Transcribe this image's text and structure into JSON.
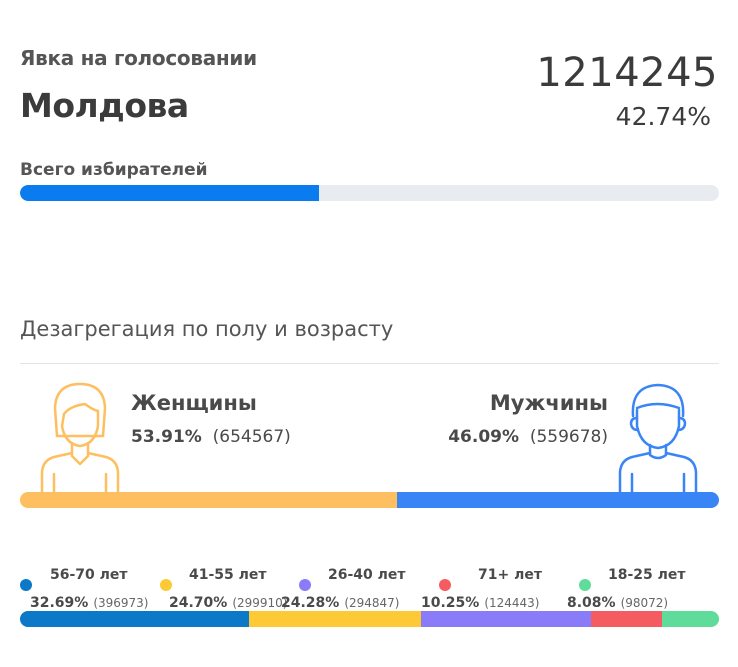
{
  "header": {
    "subtitle": "Явка на голосовании",
    "title": "Молдова",
    "total": "1214245",
    "turnout_pct": "42.74%",
    "turnout_fraction": 0.4274
  },
  "voters": {
    "label": "Всего избирателей"
  },
  "breakdown": {
    "title": "Дезагрегация по полу и возрасту",
    "women": {
      "label": "Женщины",
      "pct": "53.91%",
      "count": "(654567)",
      "fraction": 0.5391,
      "color": "#fdbf5f"
    },
    "men": {
      "label": "Мужчины",
      "pct": "46.09%",
      "count": "(559678)",
      "fraction": 0.4609,
      "color": "#3a85f5"
    }
  },
  "ages": [
    {
      "label": "56-70 лет",
      "pct": "32.69%",
      "count": "(396973)",
      "fraction": 0.3269,
      "color": "#0b78c8"
    },
    {
      "label": "41-55 лет",
      "pct": "24.70%",
      "count": "(299910)",
      "fraction": 0.247,
      "color": "#fdca35"
    },
    {
      "label": "26-40 лет",
      "pct": "24.28%",
      "count": "(294847)",
      "fraction": 0.2428,
      "color": "#8a7cf9"
    },
    {
      "label": "71+ лет",
      "pct": "10.25%",
      "count": "(124443)",
      "fraction": 0.1025,
      "color": "#f55c61"
    },
    {
      "label": "18-25 лет",
      "pct": "8.08%",
      "count": "(98072)",
      "fraction": 0.0808,
      "color": "#5fdc9a"
    }
  ],
  "icons": {
    "women": "woman-icon",
    "men": "man-icon"
  }
}
